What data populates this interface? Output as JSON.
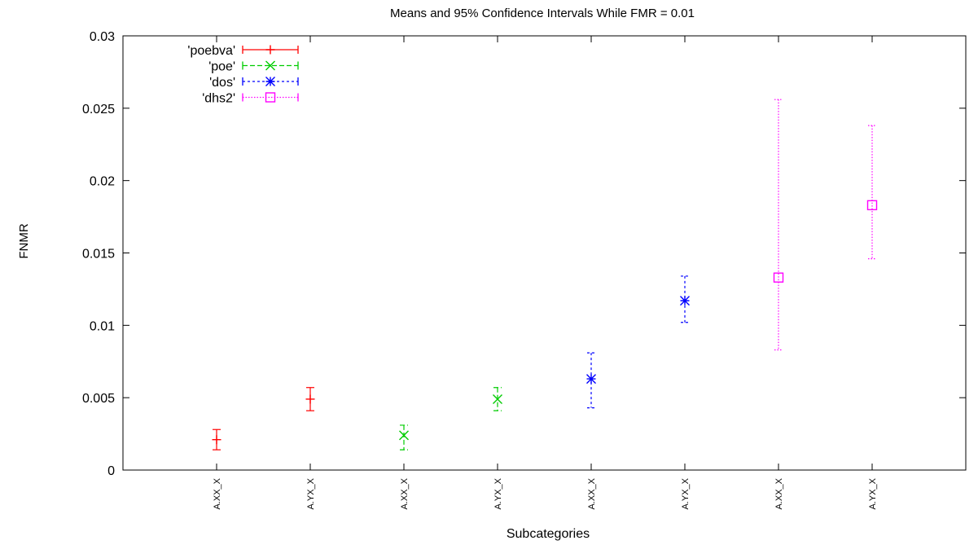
{
  "chart_data": {
    "type": "scatter",
    "title": "Means and 95% Confidence Intervals While FMR = 0.01",
    "xlabel": "Subcategories",
    "ylabel": "FNMR",
    "ylim": [
      0,
      0.03
    ],
    "yticks": [
      "0",
      "0.005",
      "0.01",
      "0.015",
      "0.02",
      "0.025",
      "0.03"
    ],
    "categories": [
      "A.XX_X",
      "A.YX_X",
      "A.XX_X",
      "A.YX_X",
      "A.XX_X",
      "A.YX_X",
      "A.XX_X",
      "A.YX_X"
    ],
    "legend_position": "top-left",
    "grid": false,
    "error_bars": "95% confidence intervals",
    "series": [
      {
        "name": "'poebva'",
        "color": "#ff0000",
        "marker": "plus",
        "dash": "",
        "points": [
          {
            "x": 1,
            "y": 0.0021,
            "low": 0.0014,
            "high": 0.0028
          },
          {
            "x": 2,
            "y": 0.0049,
            "low": 0.0041,
            "high": 0.0057
          }
        ]
      },
      {
        "name": "'poe'",
        "color": "#00cc00",
        "marker": "cross",
        "dash": "6,3",
        "points": [
          {
            "x": 3,
            "y": 0.0024,
            "low": 0.0014,
            "high": 0.0031
          },
          {
            "x": 4,
            "y": 0.0049,
            "low": 0.0041,
            "high": 0.0057
          }
        ]
      },
      {
        "name": "'dos'",
        "color": "#0000ff",
        "marker": "star",
        "dash": "3,3",
        "points": [
          {
            "x": 5,
            "y": 0.0063,
            "low": 0.0043,
            "high": 0.0081
          },
          {
            "x": 6,
            "y": 0.0117,
            "low": 0.0102,
            "high": 0.0134
          }
        ]
      },
      {
        "name": "'dhs2'",
        "color": "#ff00ff",
        "marker": "box",
        "dash": "1.5,2",
        "points": [
          {
            "x": 7,
            "y": 0.0133,
            "low": 0.0083,
            "high": 0.0256
          },
          {
            "x": 8,
            "y": 0.0183,
            "low": 0.0146,
            "high": 0.0238
          }
        ]
      }
    ]
  }
}
